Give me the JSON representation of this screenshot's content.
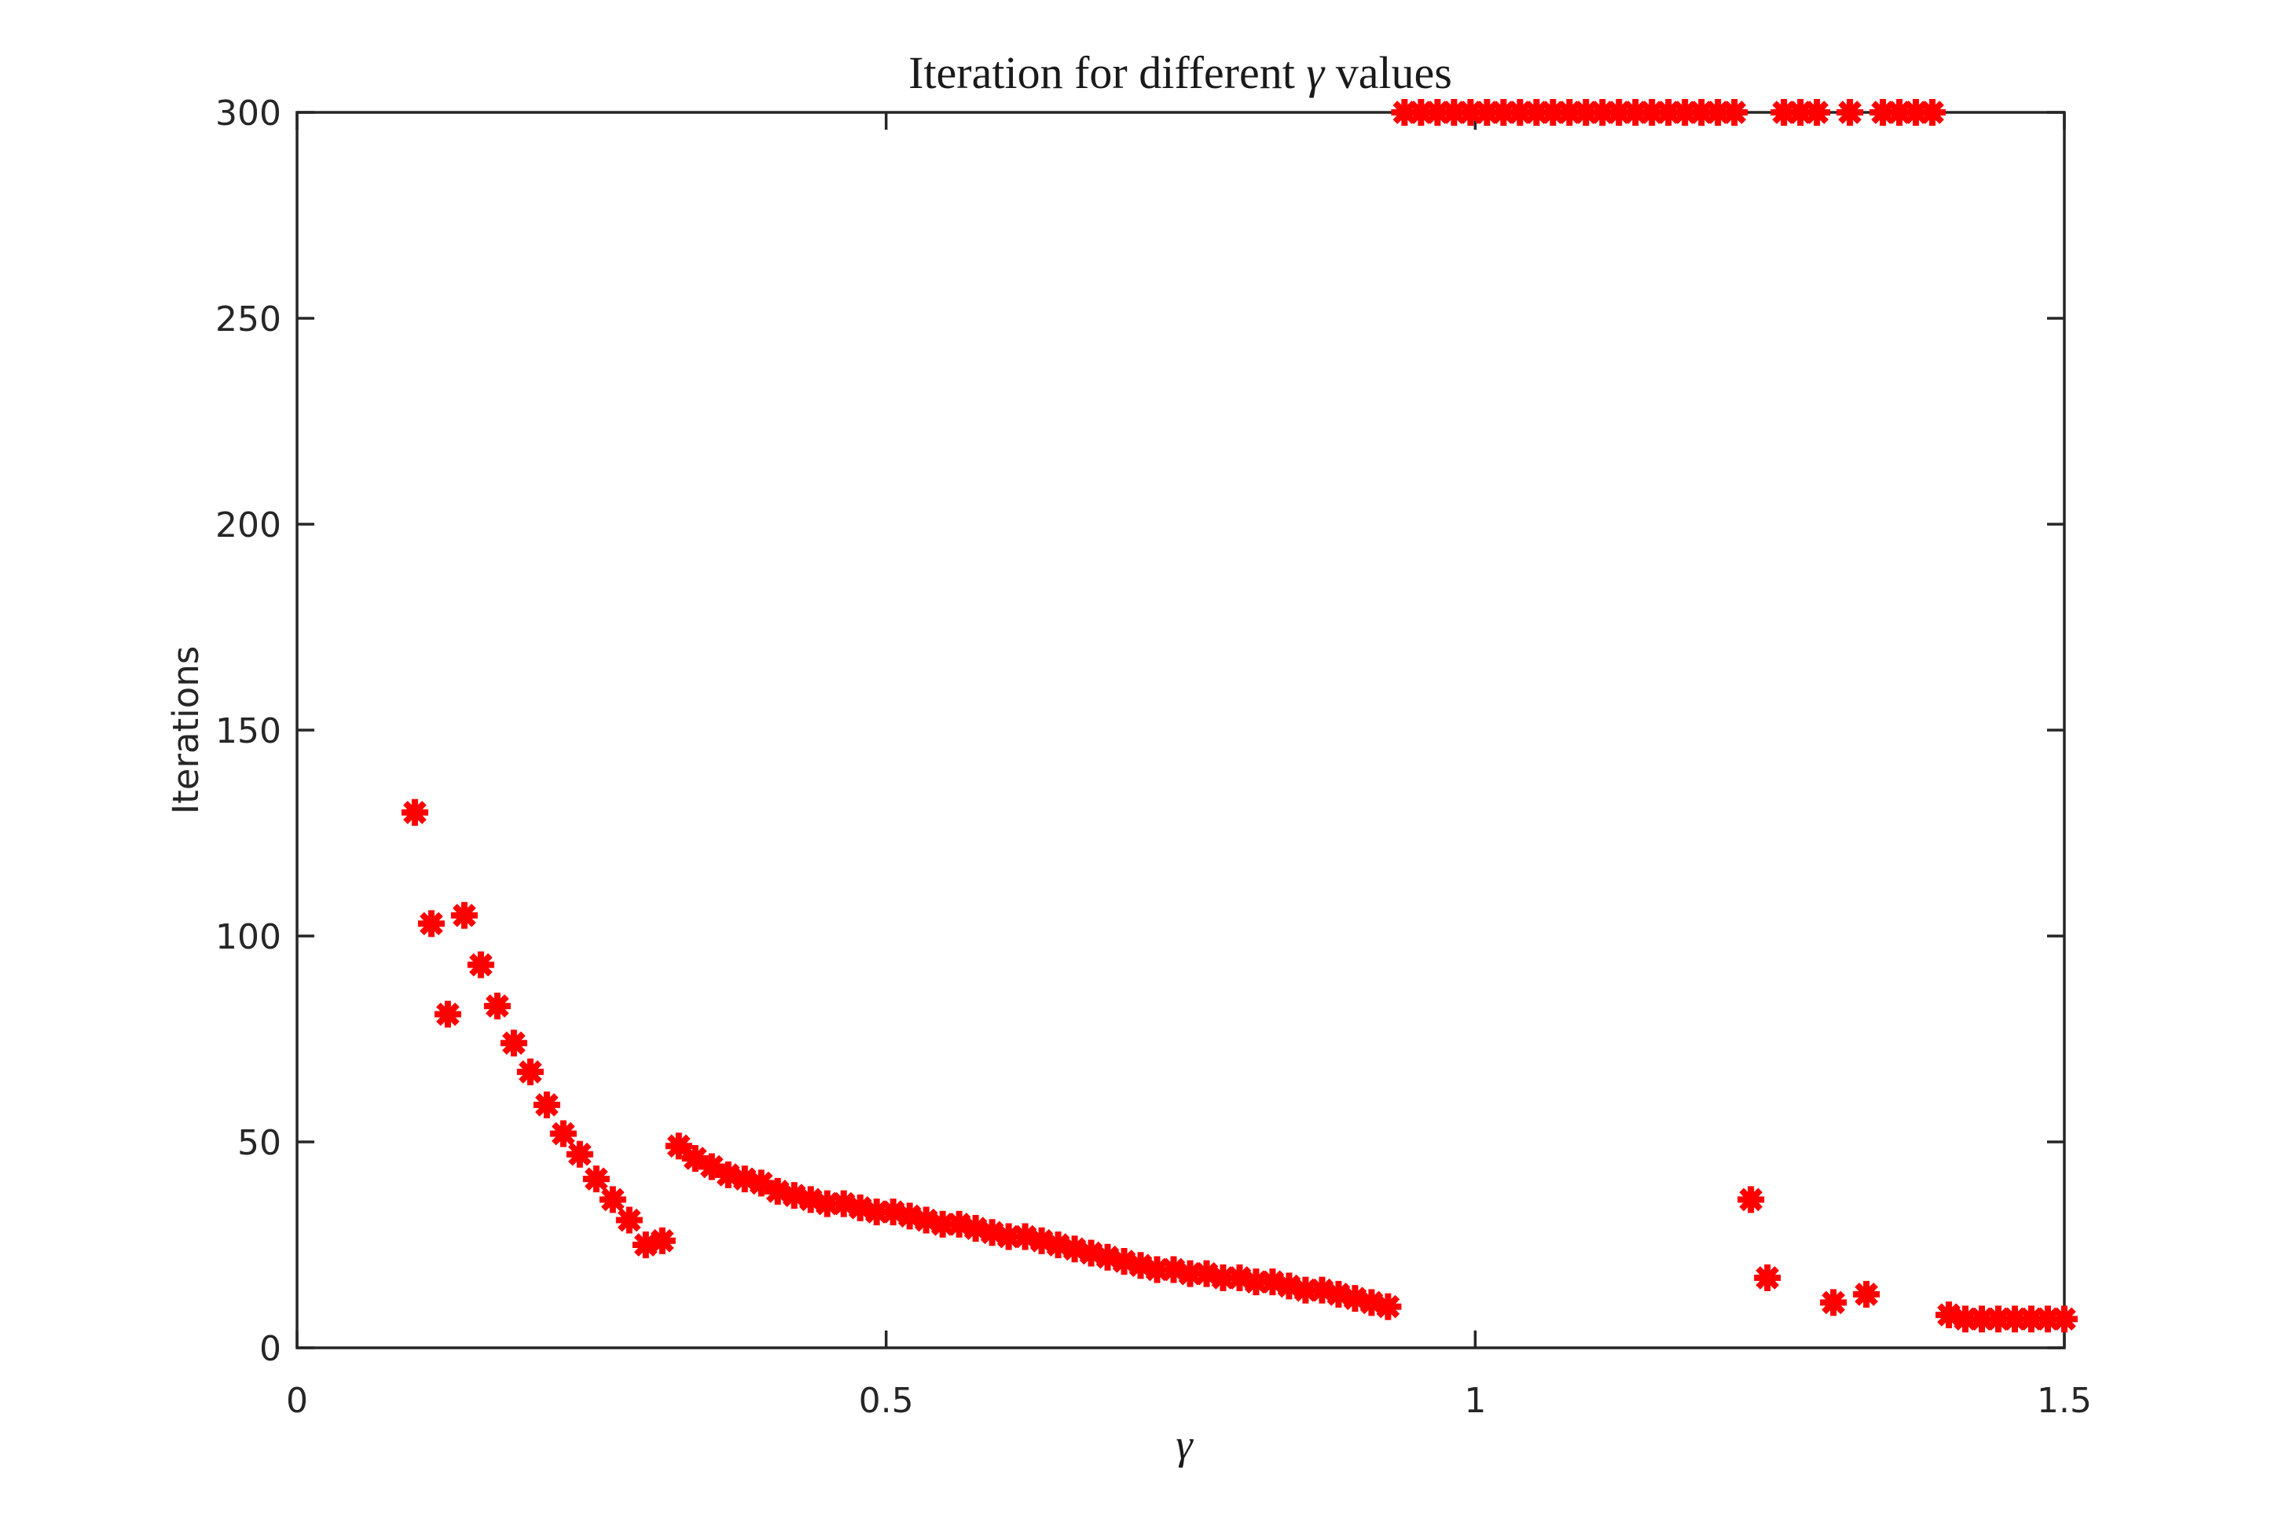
{
  "chart_data": {
    "type": "scatter",
    "title_prefix": "Iteration for different ",
    "title_gamma": "γ",
    "title_suffix": " values",
    "title_full": "Iteration for different γ values",
    "xlabel": "γ",
    "ylabel": "Iterations",
    "xlim": [
      0,
      1.5
    ],
    "ylim": [
      0,
      300
    ],
    "xticks": [
      0,
      0.5,
      1,
      1.5
    ],
    "xtick_labels": [
      "0",
      "0.5",
      "1",
      "1.5"
    ],
    "yticks": [
      0,
      50,
      100,
      150,
      200,
      250,
      300
    ],
    "ytick_labels": [
      "0",
      "50",
      "100",
      "150",
      "200",
      "250",
      "300"
    ],
    "grid": false,
    "box": true,
    "legend_position": "none",
    "marker": {
      "shape": "asterisk-8-spoke",
      "color": "#ff0000",
      "size": 34,
      "stroke_width": 8
    },
    "axis_color": "#262626",
    "background_color": "#ffffff",
    "max_iterations_cap": 300,
    "series": [
      {
        "name": "iterations-vs-gamma",
        "points": [
          [
            0.1,
            130
          ],
          [
            0.114,
            103
          ],
          [
            0.128,
            81
          ],
          [
            0.142,
            105
          ],
          [
            0.156,
            93
          ],
          [
            0.17,
            83
          ],
          [
            0.184,
            74
          ],
          [
            0.198,
            67
          ],
          [
            0.212,
            59
          ],
          [
            0.226,
            52
          ],
          [
            0.24,
            47
          ],
          [
            0.254,
            41
          ],
          [
            0.268,
            36
          ],
          [
            0.282,
            31
          ],
          [
            0.296,
            25
          ],
          [
            0.31,
            26
          ],
          [
            0.324,
            49
          ],
          [
            0.338,
            46
          ],
          [
            0.352,
            44
          ],
          [
            0.366,
            42
          ],
          [
            0.38,
            41
          ],
          [
            0.394,
            40
          ],
          [
            0.408,
            38
          ],
          [
            0.422,
            37
          ],
          [
            0.436,
            36
          ],
          [
            0.45,
            35
          ],
          [
            0.464,
            35
          ],
          [
            0.478,
            34
          ],
          [
            0.492,
            33
          ],
          [
            0.506,
            33
          ],
          [
            0.52,
            32
          ],
          [
            0.534,
            31
          ],
          [
            0.548,
            30
          ],
          [
            0.562,
            30
          ],
          [
            0.576,
            29
          ],
          [
            0.59,
            28
          ],
          [
            0.604,
            27
          ],
          [
            0.618,
            27
          ],
          [
            0.632,
            26
          ],
          [
            0.646,
            25
          ],
          [
            0.66,
            24
          ],
          [
            0.674,
            23
          ],
          [
            0.688,
            22
          ],
          [
            0.702,
            21
          ],
          [
            0.716,
            20
          ],
          [
            0.73,
            19
          ],
          [
            0.744,
            19
          ],
          [
            0.758,
            18
          ],
          [
            0.772,
            18
          ],
          [
            0.786,
            17
          ],
          [
            0.8,
            17
          ],
          [
            0.814,
            16
          ],
          [
            0.828,
            16
          ],
          [
            0.842,
            15
          ],
          [
            0.856,
            14
          ],
          [
            0.87,
            14
          ],
          [
            0.884,
            13
          ],
          [
            0.898,
            12
          ],
          [
            0.912,
            11
          ],
          [
            0.926,
            10
          ],
          [
            0.94,
            300
          ],
          [
            0.954,
            300
          ],
          [
            0.968,
            300
          ],
          [
            0.982,
            300
          ],
          [
            0.996,
            300
          ],
          [
            1.01,
            300
          ],
          [
            1.024,
            300
          ],
          [
            1.038,
            300
          ],
          [
            1.052,
            300
          ],
          [
            1.066,
            300
          ],
          [
            1.08,
            300
          ],
          [
            1.094,
            300
          ],
          [
            1.108,
            300
          ],
          [
            1.122,
            300
          ],
          [
            1.136,
            300
          ],
          [
            1.15,
            300
          ],
          [
            1.164,
            300
          ],
          [
            1.178,
            300
          ],
          [
            1.192,
            300
          ],
          [
            1.206,
            300
          ],
          [
            1.22,
            300
          ],
          [
            1.234,
            36
          ],
          [
            1.248,
            17
          ],
          [
            1.262,
            300
          ],
          [
            1.276,
            300
          ],
          [
            1.29,
            300
          ],
          [
            1.304,
            11
          ],
          [
            1.318,
            300
          ],
          [
            1.332,
            13
          ],
          [
            1.346,
            300
          ],
          [
            1.36,
            300
          ],
          [
            1.374,
            300
          ],
          [
            1.388,
            300
          ],
          [
            1.402,
            8
          ],
          [
            1.416,
            7
          ],
          [
            1.43,
            7
          ],
          [
            1.444,
            7
          ],
          [
            1.458,
            7
          ],
          [
            1.472,
            7
          ],
          [
            1.486,
            7
          ],
          [
            1.5,
            7
          ]
        ]
      }
    ]
  }
}
